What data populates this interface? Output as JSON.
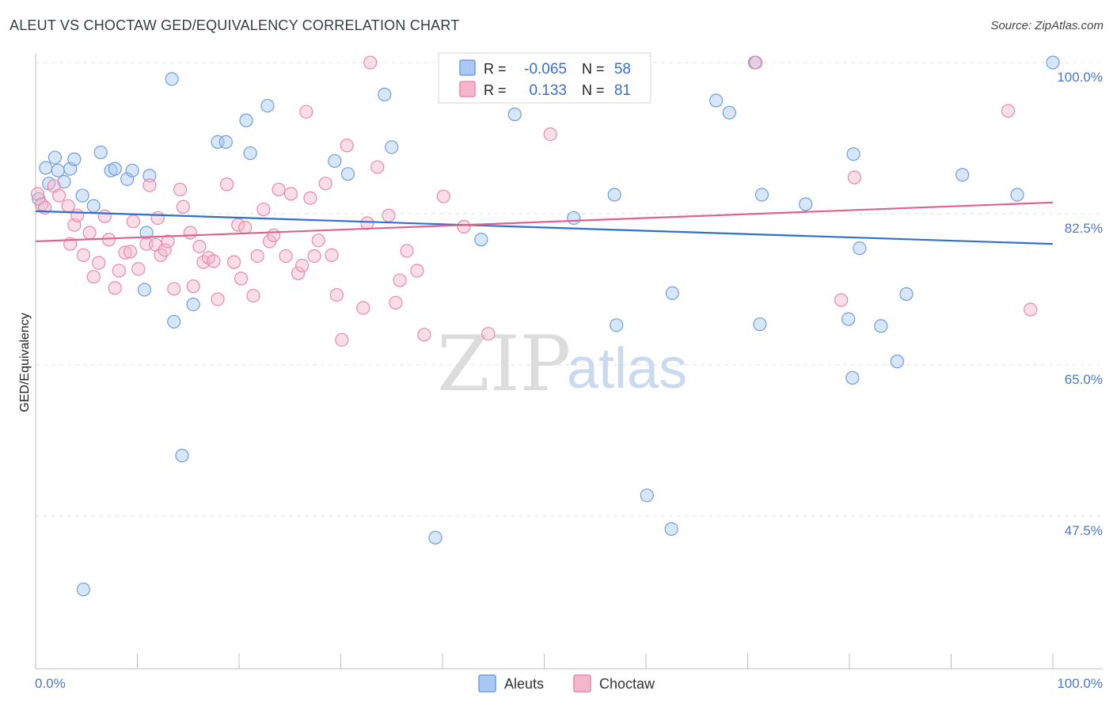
{
  "header": {
    "title": "ALEUT VS CHOCTAW GED/EQUIVALENCY CORRELATION CHART",
    "source": "Source: ZipAtlas.com"
  },
  "watermark": {
    "part1": "ZIP",
    "part2": "atlas"
  },
  "stats_box": {
    "rows": [
      {
        "r_label": "R =",
        "r_value": "-0.065",
        "n_label": "N =",
        "n_value": "58",
        "color": "#a9c8f2"
      },
      {
        "r_label": "R =",
        "r_value": "0.133",
        "n_label": "N =",
        "n_value": "81",
        "color": "#f5b6c9"
      }
    ]
  },
  "legend": {
    "items": [
      {
        "label": "Aleuts",
        "color": "#a9c8f2"
      },
      {
        "label": "Choctaw",
        "color": "#f5b6c9"
      }
    ]
  },
  "chart_data": {
    "type": "scatter",
    "title": "ALEUT VS CHOCTAW GED/EQUIVALENCY CORRELATION CHART",
    "ylabel": "GED/Equivalency",
    "xlabel": "",
    "x_tick_labels": [
      "0.0%",
      "100.0%"
    ],
    "y_tick_labels": [
      "100.0%",
      "82.5%",
      "65.0%",
      "47.5%"
    ],
    "y_ticks": [
      100.0,
      82.5,
      65.0,
      47.5
    ],
    "xlim": [
      0,
      100
    ],
    "ylim": [
      33,
      102.5
    ],
    "grid": true,
    "legend_position": "bottom-center",
    "colors": {
      "aleut_fill": "#a9c8f2",
      "aleut_stroke": "#6f9fe0",
      "aleut_line": "#2f6fd0",
      "choctaw_fill": "#f5b6c9",
      "choctaw_stroke": "#e98aa9",
      "choctaw_line": "#e0608e"
    },
    "series": [
      {
        "name": "Aleuts",
        "trend": {
          "x": [
            0,
            100
          ],
          "y": [
            82.8,
            79.0
          ]
        },
        "points": [
          [
            0.3,
            84.2
          ],
          [
            1.0,
            87.8
          ],
          [
            1.3,
            86.0
          ],
          [
            1.9,
            89.0
          ],
          [
            2.2,
            87.5
          ],
          [
            2.8,
            86.2
          ],
          [
            3.4,
            87.7
          ],
          [
            3.8,
            88.8
          ],
          [
            4.6,
            84.6
          ],
          [
            5.7,
            83.4
          ],
          [
            6.4,
            89.6
          ],
          [
            7.4,
            87.5
          ],
          [
            7.8,
            87.7
          ],
          [
            9.0,
            86.5
          ],
          [
            9.5,
            87.5
          ],
          [
            10.7,
            73.7
          ],
          [
            10.9,
            80.3
          ],
          [
            11.2,
            86.9
          ],
          [
            13.4,
            98.1
          ],
          [
            13.6,
            70.0
          ],
          [
            14.4,
            54.5
          ],
          [
            15.5,
            72.0
          ],
          [
            17.9,
            90.8
          ],
          [
            18.7,
            90.8
          ],
          [
            20.7,
            93.3
          ],
          [
            21.1,
            89.5
          ],
          [
            22.8,
            95.0
          ],
          [
            29.4,
            88.6
          ],
          [
            30.7,
            87.1
          ],
          [
            34.3,
            96.3
          ],
          [
            35.0,
            90.2
          ],
          [
            39.3,
            45.0
          ],
          [
            4.7,
            39.0
          ],
          [
            43.8,
            79.5
          ],
          [
            47.1,
            94.0
          ],
          [
            52.9,
            82.0
          ],
          [
            55.6,
            100.0
          ],
          [
            56.9,
            84.7
          ],
          [
            57.1,
            69.6
          ],
          [
            60.1,
            49.9
          ],
          [
            62.5,
            46.0
          ],
          [
            62.6,
            73.3
          ],
          [
            66.9,
            95.6
          ],
          [
            68.2,
            94.2
          ],
          [
            70.7,
            100.0
          ],
          [
            71.2,
            69.7
          ],
          [
            71.4,
            84.7
          ],
          [
            75.7,
            83.6
          ],
          [
            79.9,
            70.3
          ],
          [
            80.3,
            63.5
          ],
          [
            80.4,
            89.4
          ],
          [
            81.0,
            78.5
          ],
          [
            83.1,
            69.5
          ],
          [
            84.7,
            65.4
          ],
          [
            85.6,
            73.2
          ],
          [
            91.1,
            87.0
          ],
          [
            96.5,
            84.7
          ],
          [
            100.0,
            100.0
          ]
        ]
      },
      {
        "name": "Choctaw",
        "trend": {
          "x": [
            0,
            100
          ],
          "y": [
            79.3,
            83.8
          ]
        },
        "points": [
          [
            0.2,
            84.8
          ],
          [
            0.6,
            83.6
          ],
          [
            0.9,
            83.2
          ],
          [
            1.8,
            85.7
          ],
          [
            2.3,
            84.6
          ],
          [
            3.2,
            83.4
          ],
          [
            3.4,
            79.0
          ],
          [
            3.8,
            81.2
          ],
          [
            4.1,
            82.3
          ],
          [
            4.7,
            77.7
          ],
          [
            5.3,
            80.3
          ],
          [
            5.7,
            75.2
          ],
          [
            6.2,
            76.8
          ],
          [
            6.8,
            82.2
          ],
          [
            7.2,
            79.5
          ],
          [
            7.8,
            73.9
          ],
          [
            8.2,
            75.9
          ],
          [
            8.8,
            78.0
          ],
          [
            9.3,
            78.1
          ],
          [
            9.6,
            81.6
          ],
          [
            10.1,
            76.1
          ],
          [
            10.9,
            79.0
          ],
          [
            11.2,
            85.8
          ],
          [
            11.8,
            78.9
          ],
          [
            12.3,
            77.7
          ],
          [
            12.7,
            78.3
          ],
          [
            13.0,
            79.3
          ],
          [
            13.6,
            73.8
          ],
          [
            14.2,
            85.3
          ],
          [
            14.5,
            83.3
          ],
          [
            15.2,
            80.3
          ],
          [
            15.5,
            74.1
          ],
          [
            16.1,
            78.7
          ],
          [
            16.5,
            76.9
          ],
          [
            17.0,
            77.4
          ],
          [
            17.5,
            77.0
          ],
          [
            17.9,
            72.6
          ],
          [
            18.8,
            85.9
          ],
          [
            19.5,
            76.9
          ],
          [
            19.9,
            81.2
          ],
          [
            20.2,
            75.0
          ],
          [
            20.6,
            80.9
          ],
          [
            21.4,
            73.0
          ],
          [
            21.8,
            77.6
          ],
          [
            22.4,
            83.0
          ],
          [
            23.0,
            79.3
          ],
          [
            23.4,
            80.0
          ],
          [
            23.9,
            85.3
          ],
          [
            24.6,
            77.6
          ],
          [
            25.1,
            84.8
          ],
          [
            25.8,
            75.6
          ],
          [
            26.6,
            94.3
          ],
          [
            27.0,
            84.3
          ],
          [
            27.4,
            77.6
          ],
          [
            27.8,
            79.4
          ],
          [
            28.5,
            86.0
          ],
          [
            29.1,
            77.7
          ],
          [
            29.6,
            73.1
          ],
          [
            30.1,
            67.9
          ],
          [
            30.6,
            90.4
          ],
          [
            32.2,
            71.6
          ],
          [
            32.6,
            81.4
          ],
          [
            32.9,
            100.0
          ],
          [
            33.6,
            87.9
          ],
          [
            34.7,
            82.3
          ],
          [
            35.4,
            72.2
          ],
          [
            35.8,
            74.8
          ],
          [
            36.5,
            78.2
          ],
          [
            37.5,
            75.9
          ],
          [
            38.2,
            68.5
          ],
          [
            40.1,
            84.5
          ],
          [
            42.1,
            81.0
          ],
          [
            44.5,
            68.6
          ],
          [
            50.6,
            91.7
          ],
          [
            70.8,
            100.0
          ],
          [
            79.2,
            72.5
          ],
          [
            80.5,
            86.7
          ],
          [
            95.6,
            94.4
          ],
          [
            97.8,
            71.4
          ],
          [
            26.2,
            76.5
          ],
          [
            12.0,
            82.0
          ]
        ]
      }
    ]
  }
}
